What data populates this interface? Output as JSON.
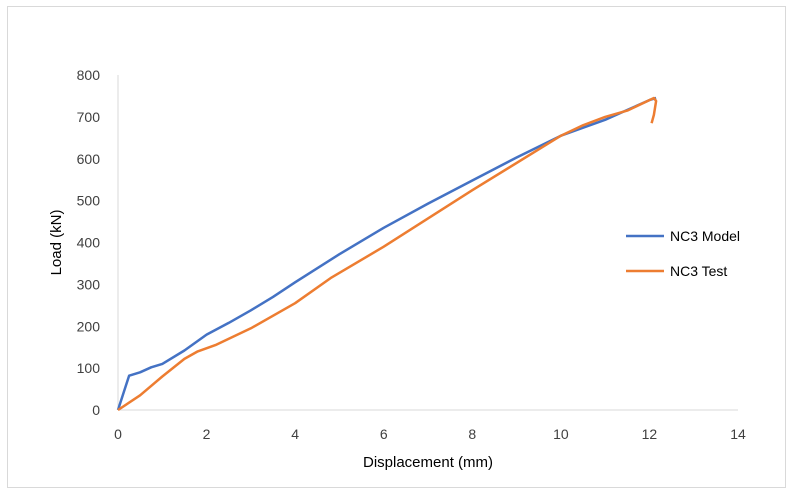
{
  "chart_data": {
    "type": "line",
    "title": "",
    "xlabel": "Displacement (mm)",
    "ylabel": "Load (kN)",
    "xlim": [
      0,
      14
    ],
    "ylim": [
      0,
      800
    ],
    "x_ticks": [
      "0",
      "2",
      "4",
      "6",
      "8",
      "10",
      "12",
      "14"
    ],
    "y_ticks": [
      "0",
      "100",
      "200",
      "300",
      "400",
      "500",
      "600",
      "700",
      "800"
    ],
    "grid": false,
    "legend_position": "right",
    "series": [
      {
        "name": "NC3 Model",
        "color": "#4472c4",
        "points": [
          [
            0,
            0
          ],
          [
            0.25,
            82
          ],
          [
            0.5,
            90
          ],
          [
            0.75,
            102
          ],
          [
            1.0,
            110
          ],
          [
            1.5,
            142
          ],
          [
            2.0,
            180
          ],
          [
            2.5,
            208
          ],
          [
            3.0,
            238
          ],
          [
            3.5,
            270
          ],
          [
            4.0,
            305
          ],
          [
            5.0,
            372
          ],
          [
            6.0,
            435
          ],
          [
            7.0,
            493
          ],
          [
            8.0,
            548
          ],
          [
            9.0,
            603
          ],
          [
            10.0,
            655
          ],
          [
            11.0,
            693
          ],
          [
            12.0,
            740
          ],
          [
            12.15,
            745
          ]
        ]
      },
      {
        "name": "NC3 Test",
        "color": "#ed7d31",
        "points": [
          [
            0,
            0
          ],
          [
            0.5,
            35
          ],
          [
            1.0,
            80
          ],
          [
            1.5,
            122
          ],
          [
            1.8,
            140
          ],
          [
            2.2,
            155
          ],
          [
            3.0,
            195
          ],
          [
            4.0,
            255
          ],
          [
            4.8,
            315
          ],
          [
            6.0,
            390
          ],
          [
            8.0,
            525
          ],
          [
            10.0,
            655
          ],
          [
            10.5,
            680
          ],
          [
            11.0,
            700
          ],
          [
            11.5,
            715
          ],
          [
            12.0,
            740
          ],
          [
            12.1,
            745
          ],
          [
            12.15,
            738
          ],
          [
            12.1,
            705
          ],
          [
            12.05,
            685
          ]
        ]
      }
    ]
  }
}
